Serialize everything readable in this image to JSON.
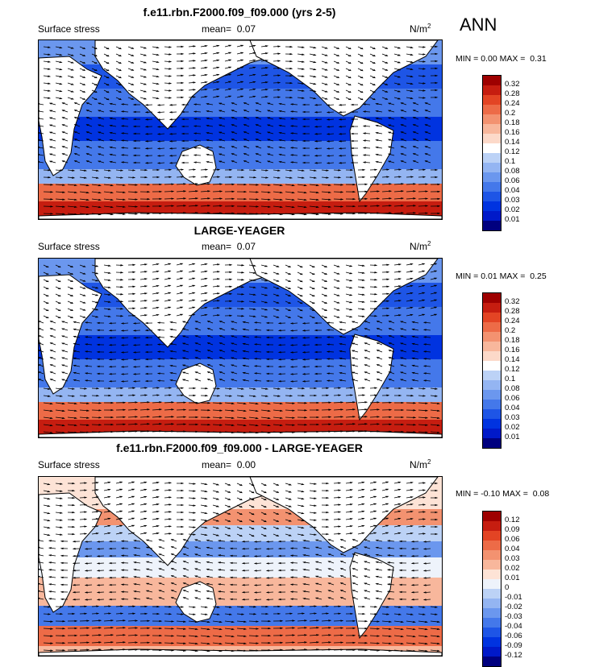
{
  "season": "ANN",
  "units_base": "N/m",
  "units_exp": "2",
  "palette_abs": [
    "#00007f",
    "#0019c9",
    "#0033e0",
    "#1e55e6",
    "#4478ea",
    "#6b97ee",
    "#94b5f2",
    "#bcd2f6",
    "#ffffff",
    "#fcd9c9",
    "#f8b79c",
    "#f39270",
    "#ed6b47",
    "#e34424",
    "#c61d10",
    "#9e0000"
  ],
  "palette_diff": [
    "#00007f",
    "#0019c9",
    "#0033e0",
    "#1e55e6",
    "#4478ea",
    "#6b97ee",
    "#94b5f2",
    "#bcd2f6",
    "#eef3fb",
    "#fde3d6",
    "#f8b79c",
    "#f39270",
    "#ed6b47",
    "#e34424",
    "#c61d10",
    "#9e0000"
  ],
  "abs_ticks": [
    "0.32",
    "0.28",
    "0.24",
    "0.2",
    "0.18",
    "0.16",
    "0.14",
    "0.12",
    "0.1",
    "0.08",
    "0.06",
    "0.04",
    "0.03",
    "0.02",
    "0.01"
  ],
  "diff_ticks": [
    "0.12",
    "0.09",
    "0.06",
    "0.04",
    "0.03",
    "0.02",
    "0.01",
    "0",
    "-0.01",
    "-0.02",
    "-0.03",
    "-0.04",
    "-0.06",
    "-0.09",
    "-0.12"
  ],
  "panels": [
    {
      "title": "f.e11.rbn.F2000.f09_f09.000 (yrs 2-5)",
      "var": "Surface stress",
      "mean_label": "mean=",
      "mean": "0.07",
      "min_label": "MIN =",
      "min": "0.00",
      "max_label": "MAX =",
      "max": "0.31",
      "kind": "abs"
    },
    {
      "title": "LARGE-YEAGER",
      "var": "Surface stress",
      "mean_label": "mean=",
      "mean": "0.07",
      "min_label": "MIN =",
      "min": "0.01",
      "max_label": "MAX =",
      "max": "0.25",
      "kind": "abs"
    },
    {
      "title": "f.e11.rbn.F2000.f09_f09.000 - LARGE-YEAGER",
      "var": "Surface stress",
      "mean_label": "mean=",
      "mean": "0.00",
      "min_label": "MIN =",
      "min": "-0.10",
      "max_label": "MAX =",
      "max": "0.08",
      "kind": "diff"
    }
  ]
}
